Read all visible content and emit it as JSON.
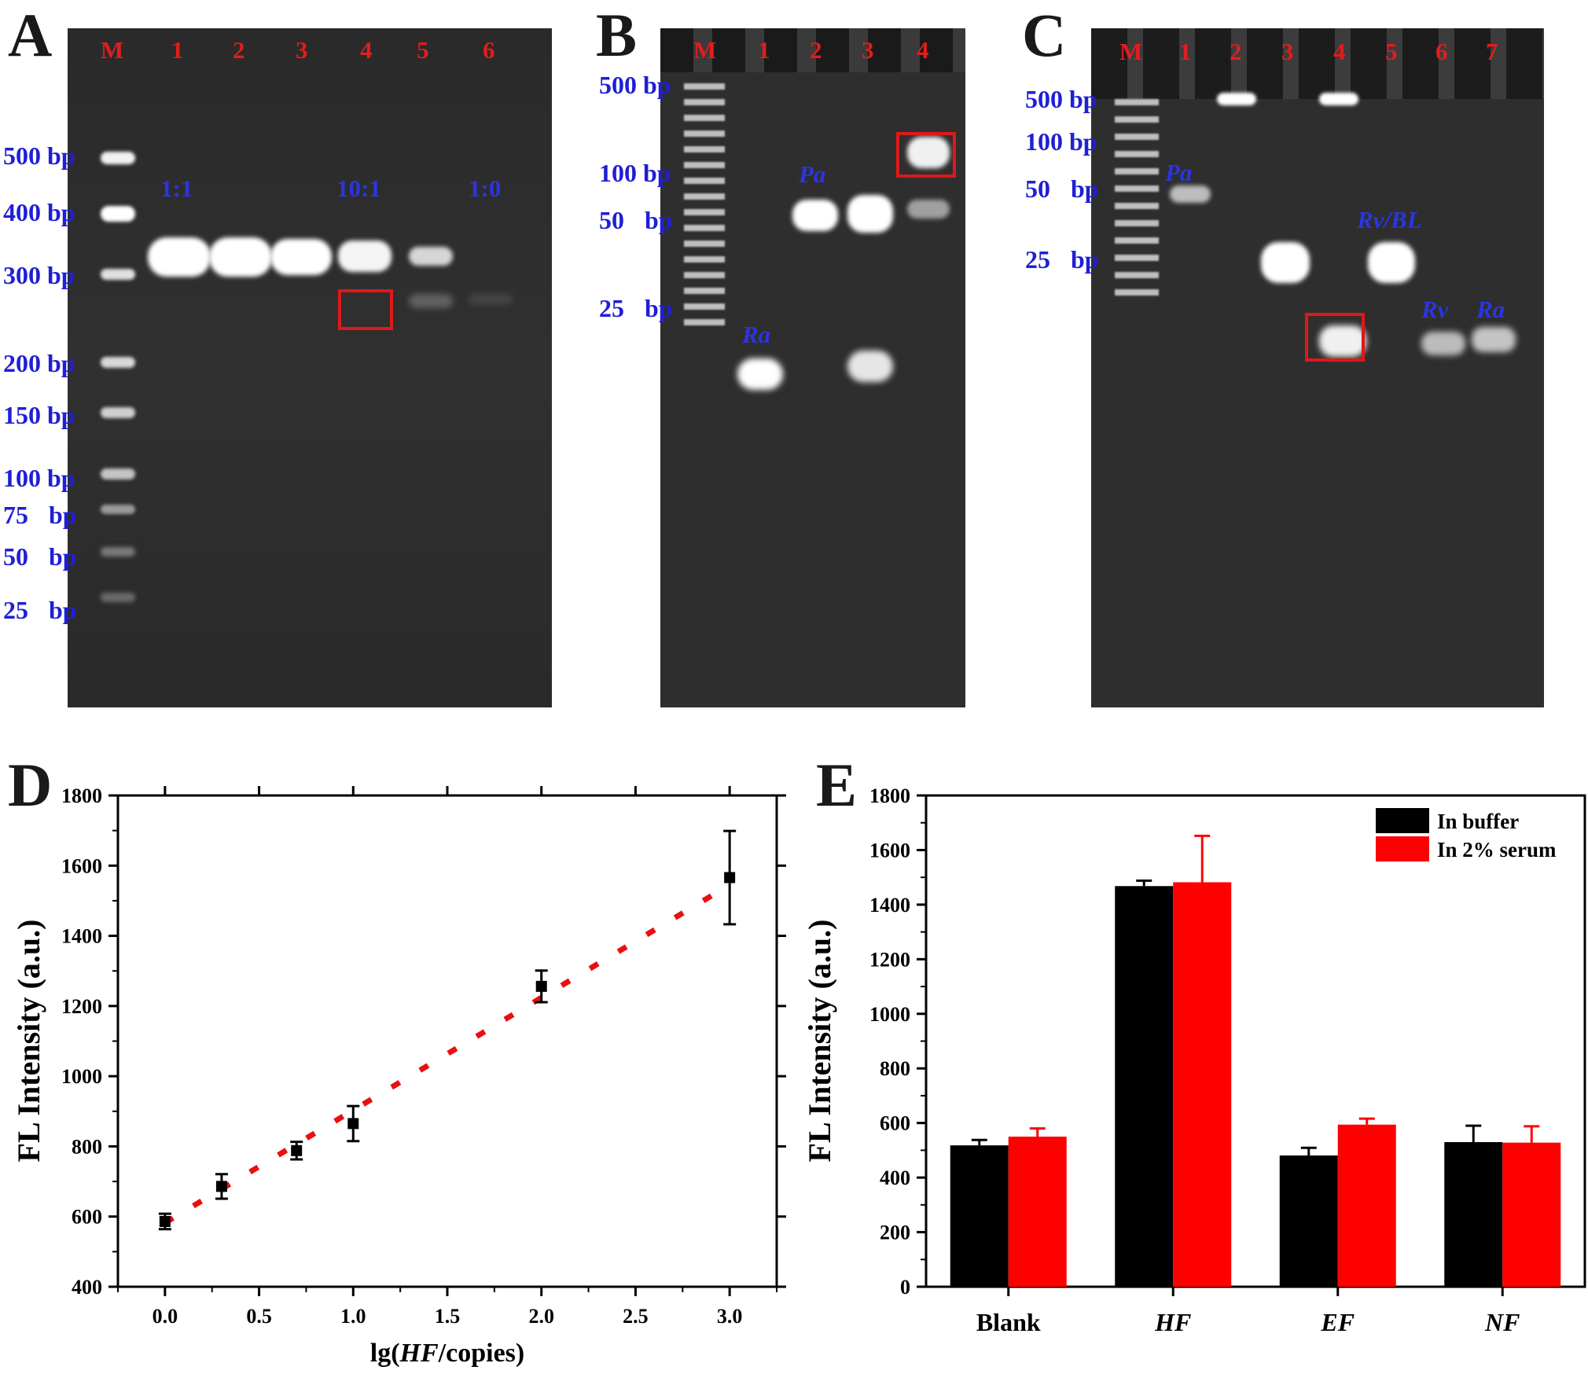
{
  "panels": {
    "A": {
      "letter": "A",
      "lanes": [
        "M",
        "1",
        "2",
        "3",
        "4",
        "5",
        "6"
      ],
      "markers": [
        "500 bp",
        "400 bp",
        "300 bp",
        "200 bp",
        "150 bp",
        "100 bp",
        "75 bp",
        "50 bp",
        "25 bp"
      ],
      "notes": [
        "1:1",
        "10:1",
        "1:0"
      ]
    },
    "B": {
      "letter": "B",
      "lanes": [
        "M",
        "1",
        "2",
        "3",
        "4"
      ],
      "markers": [
        "500 bp",
        "100 bp",
        "50 bp",
        "25 bp"
      ],
      "notes": [
        "Pa",
        "Ra"
      ]
    },
    "C": {
      "letter": "C",
      "lanes": [
        "M",
        "1",
        "2",
        "3",
        "4",
        "5",
        "6",
        "7"
      ],
      "markers": [
        "500 bp",
        "100 bp",
        "50 bp",
        "25 bp"
      ],
      "notes": [
        "Pa",
        "Rv/BL",
        "Rv",
        "Ra"
      ]
    },
    "D": {
      "letter": "D"
    },
    "E": {
      "letter": "E"
    }
  },
  "chart_data": [
    {
      "type": "scatter",
      "panel": "D",
      "xlabel_prefix": "lg(",
      "xlabel_italic": "HF",
      "xlabel_suffix": "/copies)",
      "ylabel": "FL Intensity (a.u.)",
      "xlim": [
        -0.25,
        3.25
      ],
      "ylim": [
        400,
        1800
      ],
      "xticks": [
        "0.0",
        "0.5",
        "1.0",
        "1.5",
        "2.0",
        "2.5",
        "3.0"
      ],
      "yticks": [
        "400",
        "600",
        "800",
        "1000",
        "1200",
        "1400",
        "1600",
        "1800"
      ],
      "points": [
        {
          "x": 0.0,
          "y": 586,
          "err": 22
        },
        {
          "x": 0.301,
          "y": 686,
          "err": 35
        },
        {
          "x": 0.699,
          "y": 788,
          "err": 25
        },
        {
          "x": 1.0,
          "y": 865,
          "err": 50
        },
        {
          "x": 2.0,
          "y": 1256,
          "err": 45
        },
        {
          "x": 3.0,
          "y": 1566,
          "err": 133
        }
      ],
      "fit_line": {
        "x": [
          0.0,
          3.0
        ],
        "y": [
          582,
          1545
        ],
        "color": "#e81010",
        "style": "dotted"
      },
      "marker_color": "#000000"
    },
    {
      "type": "bar",
      "panel": "E",
      "ylabel": "FL Intensity (a.u.)",
      "ylim": [
        0,
        1800
      ],
      "yticks": [
        "0",
        "200",
        "400",
        "600",
        "800",
        "1000",
        "1200",
        "1400",
        "1600",
        "1800"
      ],
      "categories": [
        "Blank",
        "HF",
        "EF",
        "NF"
      ],
      "categories_italic": [
        false,
        true,
        true,
        true
      ],
      "series": [
        {
          "name": "In buffer",
          "color": "#000000",
          "values": [
            518,
            1468,
            481,
            530
          ],
          "err": [
            20,
            20,
            28,
            60
          ]
        },
        {
          "name": "In 2% serum",
          "color": "#ff0000",
          "values": [
            550,
            1482,
            594,
            528
          ],
          "err": [
            30,
            170,
            22,
            60
          ]
        }
      ],
      "legend_position": "top-right"
    }
  ]
}
